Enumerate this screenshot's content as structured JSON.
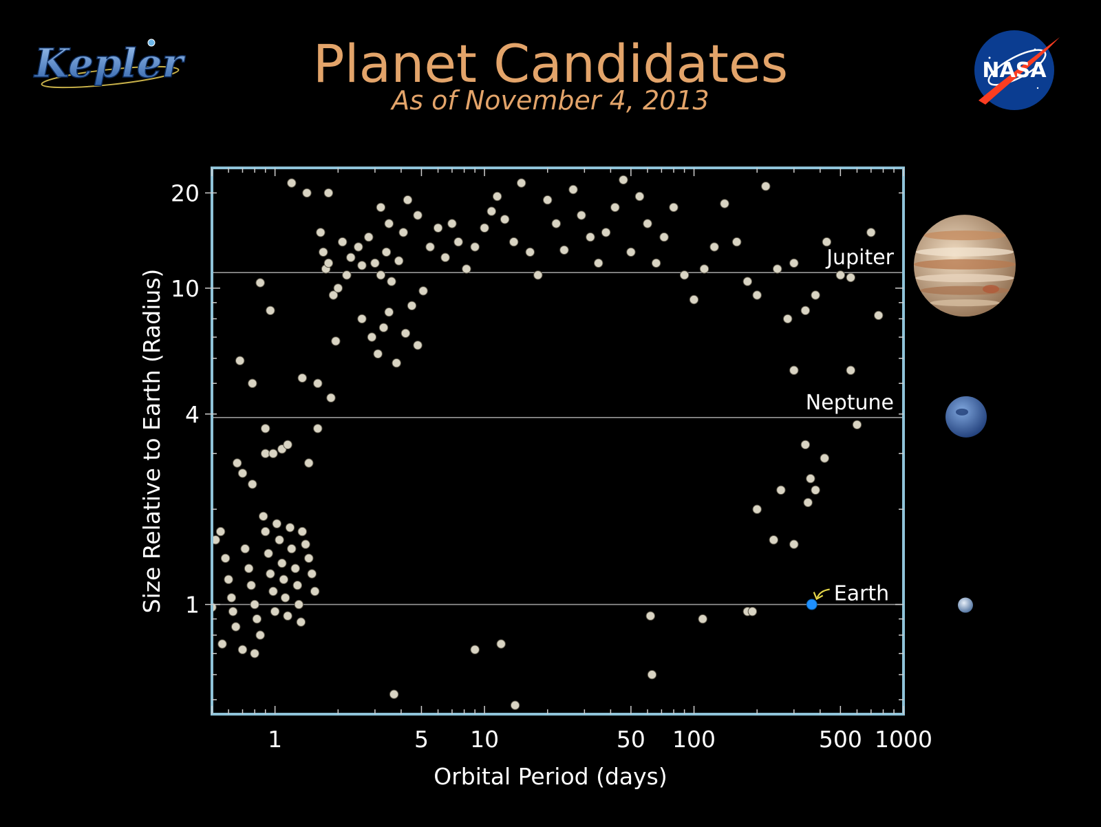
{
  "header": {
    "title": "Planet Candidates",
    "subtitle": "As of November 4, 2013",
    "title_color": "#e3a46a"
  },
  "logos": {
    "kepler": {
      "text": "Kepler",
      "icon": "kepler-logo-icon"
    },
    "nasa": {
      "text": "NASA",
      "icon": "nasa-meatball-icon"
    }
  },
  "chart_data": {
    "type": "scatter",
    "xlabel": "Orbital Period (days)",
    "ylabel": "Size Relative to Earth (Radius)",
    "xscale": "log",
    "yscale": "log",
    "xlim": [
      0.5,
      1000
    ],
    "ylim": [
      0.45,
      24
    ],
    "xticks": [
      {
        "value": 1,
        "label": "1"
      },
      {
        "value": 5,
        "label": "5"
      },
      {
        "value": 10,
        "label": "10"
      },
      {
        "value": 50,
        "label": "50"
      },
      {
        "value": 100,
        "label": "100"
      },
      {
        "value": 500,
        "label": "500"
      },
      {
        "value": 1000,
        "label": "1000"
      }
    ],
    "yticks": [
      {
        "value": 1,
        "label": "1"
      },
      {
        "value": 4,
        "label": "4"
      },
      {
        "value": 10,
        "label": "10"
      },
      {
        "value": 20,
        "label": "20"
      }
    ],
    "grid": false,
    "frame_color": "#8fc3d9",
    "point_color": "#d9d4c3",
    "reference_lines": [
      {
        "name": "Jupiter",
        "value": 11.2,
        "icon": "jupiter-icon",
        "color": "#c8a078"
      },
      {
        "name": "Neptune",
        "value": 3.9,
        "icon": "neptune-icon",
        "color": "#3f6fae"
      },
      {
        "name": "Earth",
        "value": 1.0,
        "icon": "earth-icon",
        "color": "#8ea7c8"
      }
    ],
    "highlight": {
      "name": "Earth",
      "x": 365,
      "y": 1.0,
      "color": "#1e90ff",
      "arrow_color": "#e6d84a"
    },
    "series": [
      {
        "points": [
          [
            0.52,
            1.6
          ],
          [
            0.55,
            1.7
          ],
          [
            0.58,
            1.4
          ],
          [
            0.6,
            1.2
          ],
          [
            0.62,
            1.05
          ],
          [
            0.63,
            0.95
          ],
          [
            0.65,
            0.85
          ],
          [
            0.56,
            0.75
          ],
          [
            0.5,
            0.98
          ],
          [
            0.66,
            2.8
          ],
          [
            0.7,
            2.6
          ],
          [
            0.72,
            1.5
          ],
          [
            0.75,
            1.3
          ],
          [
            0.77,
            1.15
          ],
          [
            0.8,
            1.0
          ],
          [
            0.82,
            0.9
          ],
          [
            0.85,
            0.8
          ],
          [
            0.88,
            1.9
          ],
          [
            0.9,
            1.7
          ],
          [
            0.93,
            1.45
          ],
          [
            0.95,
            1.25
          ],
          [
            0.98,
            1.1
          ],
          [
            1.0,
            0.95
          ],
          [
            1.02,
            1.8
          ],
          [
            1.05,
            1.6
          ],
          [
            1.08,
            1.35
          ],
          [
            1.1,
            1.2
          ],
          [
            1.12,
            1.05
          ],
          [
            1.15,
            0.92
          ],
          [
            1.18,
            1.75
          ],
          [
            1.2,
            1.5
          ],
          [
            1.25,
            1.3
          ],
          [
            1.28,
            1.15
          ],
          [
            1.3,
            1.0
          ],
          [
            1.33,
            0.88
          ],
          [
            1.35,
            1.7
          ],
          [
            1.4,
            1.55
          ],
          [
            1.45,
            1.4
          ],
          [
            1.5,
            1.25
          ],
          [
            1.55,
            1.1
          ],
          [
            0.7,
            0.72
          ],
          [
            0.8,
            0.7
          ],
          [
            0.78,
            2.4
          ],
          [
            0.68,
            5.9
          ],
          [
            0.78,
            5.0
          ],
          [
            0.85,
            10.4
          ],
          [
            0.95,
            8.5
          ],
          [
            0.9,
            3.6
          ],
          [
            0.9,
            3.0
          ],
          [
            0.98,
            3.0
          ],
          [
            1.2,
            21.5
          ],
          [
            1.42,
            20.0
          ],
          [
            1.8,
            20.0
          ],
          [
            1.08,
            3.1
          ],
          [
            1.15,
            3.2
          ],
          [
            1.45,
            2.8
          ],
          [
            1.6,
            5.0
          ],
          [
            1.6,
            3.6
          ],
          [
            1.35,
            5.2
          ],
          [
            1.65,
            15.0
          ],
          [
            1.7,
            13.0
          ],
          [
            1.75,
            11.5
          ],
          [
            1.8,
            12.0
          ],
          [
            1.9,
            9.5
          ],
          [
            2.0,
            10.0
          ],
          [
            1.95,
            6.8
          ],
          [
            1.85,
            4.5
          ],
          [
            2.1,
            14.0
          ],
          [
            2.2,
            11.0
          ],
          [
            2.3,
            12.5
          ],
          [
            2.5,
            13.5
          ],
          [
            2.6,
            11.8
          ],
          [
            2.8,
            14.5
          ],
          [
            3.0,
            12.0
          ],
          [
            3.2,
            11.0
          ],
          [
            3.4,
            13.0
          ],
          [
            3.6,
            10.5
          ],
          [
            3.9,
            12.2
          ],
          [
            4.1,
            15.0
          ],
          [
            2.6,
            8.0
          ],
          [
            2.9,
            7.0
          ],
          [
            3.1,
            6.2
          ],
          [
            3.3,
            7.5
          ],
          [
            3.5,
            8.4
          ],
          [
            3.8,
            5.8
          ],
          [
            4.2,
            7.2
          ],
          [
            4.5,
            8.8
          ],
          [
            4.8,
            6.6
          ],
          [
            5.1,
            9.8
          ],
          [
            3.2,
            18.0
          ],
          [
            3.5,
            16.0
          ],
          [
            4.3,
            19.0
          ],
          [
            4.8,
            17.0
          ],
          [
            5.5,
            13.5
          ],
          [
            6.0,
            15.5
          ],
          [
            6.5,
            12.5
          ],
          [
            7.0,
            16.0
          ],
          [
            7.5,
            14.0
          ],
          [
            8.2,
            11.5
          ],
          [
            9.0,
            13.5
          ],
          [
            10.0,
            15.5
          ],
          [
            10.8,
            17.5
          ],
          [
            11.5,
            19.5
          ],
          [
            12.5,
            16.5
          ],
          [
            13.8,
            14.0
          ],
          [
            15.0,
            21.5
          ],
          [
            16.5,
            13.0
          ],
          [
            18.0,
            11.0
          ],
          [
            20.0,
            19.0
          ],
          [
            22.0,
            16.0
          ],
          [
            24.0,
            13.2
          ],
          [
            26.5,
            20.5
          ],
          [
            29.0,
            17.0
          ],
          [
            32.0,
            14.5
          ],
          [
            35.0,
            12.0
          ],
          [
            38.0,
            15.0
          ],
          [
            42.0,
            18.0
          ],
          [
            46.0,
            22.0
          ],
          [
            50.0,
            13.0
          ],
          [
            55.0,
            19.5
          ],
          [
            60.0,
            16.0
          ],
          [
            66.0,
            12.0
          ],
          [
            72.0,
            14.5
          ],
          [
            80.0,
            18.0
          ],
          [
            90.0,
            11.0
          ],
          [
            100.0,
            9.2
          ],
          [
            112.0,
            11.5
          ],
          [
            125.0,
            13.5
          ],
          [
            140.0,
            18.5
          ],
          [
            160.0,
            14.0
          ],
          [
            180.0,
            10.5
          ],
          [
            200.0,
            9.5
          ],
          [
            220.0,
            21.0
          ],
          [
            250.0,
            11.5
          ],
          [
            280.0,
            8.0
          ],
          [
            300.0,
            12.0
          ],
          [
            340.0,
            8.5
          ],
          [
            380.0,
            9.5
          ],
          [
            430.0,
            14.0
          ],
          [
            500.0,
            11.0
          ],
          [
            560.0,
            5.5
          ],
          [
            600.0,
            3.7
          ],
          [
            700.0,
            15.0
          ],
          [
            760.0,
            8.2
          ],
          [
            560.0,
            10.8
          ],
          [
            300.0,
            5.5
          ],
          [
            340.0,
            3.2
          ],
          [
            360.0,
            2.5
          ],
          [
            380.0,
            2.3
          ],
          [
            420.0,
            2.9
          ],
          [
            260.0,
            2.3
          ],
          [
            240.0,
            1.6
          ],
          [
            300.0,
            1.55
          ],
          [
            350.0,
            2.1
          ],
          [
            200.0,
            2.0
          ],
          [
            180.0,
            0.95
          ],
          [
            190.0,
            0.95
          ],
          [
            110.0,
            0.9
          ],
          [
            62.0,
            0.92
          ],
          [
            63.0,
            0.6
          ],
          [
            14.0,
            0.48
          ],
          [
            3.7,
            0.52
          ],
          [
            9.0,
            0.72
          ],
          [
            12.0,
            0.75
          ]
        ]
      }
    ]
  }
}
